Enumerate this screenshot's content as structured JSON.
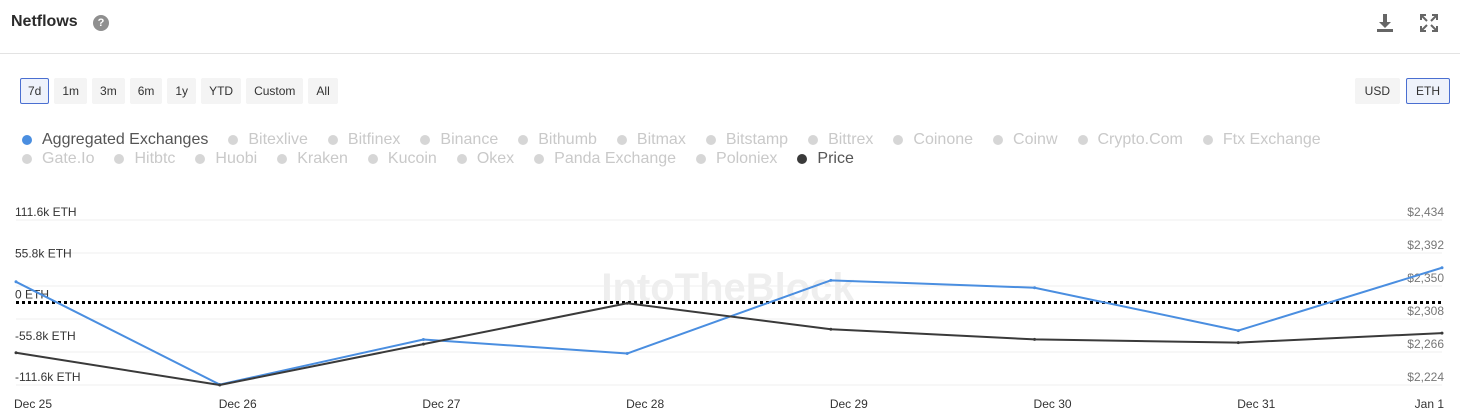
{
  "header": {
    "title": "Netflows",
    "help_icon": "?",
    "download_icon": "download-icon",
    "expand_icon": "expand-icon"
  },
  "time_ranges": [
    "7d",
    "1m",
    "3m",
    "6m",
    "1y",
    "YTD",
    "Custom",
    "All"
  ],
  "selected_range": "7d",
  "units": [
    "USD",
    "ETH"
  ],
  "selected_unit": "ETH",
  "legend": {
    "rows": [
      [
        {
          "label": "Aggregated Exchanges",
          "active": true,
          "color": "#4a8ee0"
        },
        {
          "label": "Bitexlive",
          "active": false
        },
        {
          "label": "Bitfinex",
          "active": false
        },
        {
          "label": "Binance",
          "active": false
        },
        {
          "label": "Bithumb",
          "active": false
        },
        {
          "label": "Bitmax",
          "active": false
        },
        {
          "label": "Bitstamp",
          "active": false
        },
        {
          "label": "Bittrex",
          "active": false
        },
        {
          "label": "Coinone",
          "active": false
        },
        {
          "label": "Coinw",
          "active": false
        },
        {
          "label": "Crypto.Com",
          "active": false
        },
        {
          "label": "Ftx Exchange",
          "active": false
        }
      ],
      [
        {
          "label": "Gate.Io",
          "active": false
        },
        {
          "label": "Hitbtc",
          "active": false
        },
        {
          "label": "Huobi",
          "active": false
        },
        {
          "label": "Kraken",
          "active": false
        },
        {
          "label": "Kucoin",
          "active": false
        },
        {
          "label": "Okex",
          "active": false
        },
        {
          "label": "Panda Exchange",
          "active": false
        },
        {
          "label": "Poloniex",
          "active": false
        },
        {
          "label": "Price",
          "active": true,
          "color": "#3a3a3a"
        }
      ]
    ]
  },
  "chart_data": {
    "type": "line",
    "watermark": "IntoTheBlock",
    "x": [
      "Dec 25",
      "Dec 26",
      "Dec 27",
      "Dec 28",
      "Dec 29",
      "Dec 30",
      "Dec 31",
      "Jan 1"
    ],
    "y_left": {
      "ticks": [
        "111.6k ETH",
        "55.8k ETH",
        "0 ETH",
        "-55.8k ETH",
        "-111.6k ETH"
      ],
      "tick_values": [
        111600,
        55800,
        0,
        -55800,
        -111600
      ],
      "range": [
        -111600,
        111600
      ]
    },
    "y_right": {
      "ticks": [
        "$2,434",
        "$2,392",
        "$2,350",
        "$2,308",
        "$2,266",
        "$2,224"
      ],
      "tick_values": [
        2434,
        2392,
        2350,
        2308,
        2266,
        2224
      ],
      "range": [
        2224,
        2434
      ]
    },
    "series": [
      {
        "name": "Aggregated Exchanges",
        "axis": "left",
        "color": "#4a8ee0",
        "values": [
          28000,
          -111000,
          -50000,
          -69000,
          30000,
          20000,
          -38000,
          47000
        ]
      },
      {
        "name": "Price",
        "axis": "right",
        "color": "#3a3a3a",
        "values": [
          2265,
          2224,
          2276,
          2328,
          2295,
          2282,
          2278,
          2290
        ]
      }
    ],
    "zero_line": {
      "value": 0,
      "style": "dotted",
      "color": "#000000"
    }
  }
}
